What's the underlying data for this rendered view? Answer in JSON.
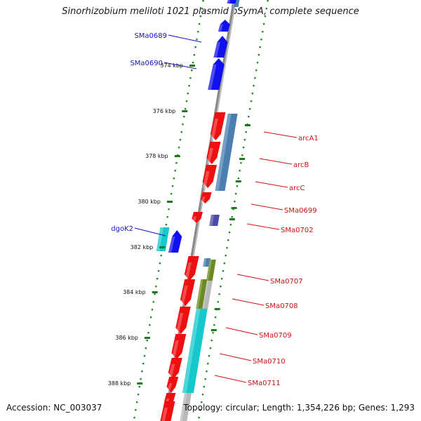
{
  "title": "Sinorhizobium meliloti 1021 plasmid pSymA, complete sequence",
  "accession_label": "Accession: NC_003037",
  "topology_label": "Topology: circular; Length: 1,354,226 bp; Genes: 1,293",
  "colors": {
    "forward_gene": "#1010ee",
    "reverse_gene": "#ee1010",
    "backbone": "#8a8a8a",
    "tick": "#1f7a1f",
    "dotted_track": "#2a8a2a",
    "cds_blue": "#4a7fb0",
    "cds_cyan": "#14c8cc",
    "cds_olive": "#6b8a22",
    "cds_grey": "#b8b8b8",
    "cds_purple": "#4a4aa8",
    "fwd_label": "#1414bb",
    "rev_label": "#cc1111"
  },
  "scale_labels": [
    "374 kbp",
    "376 kbp",
    "378 kbp",
    "380 kbp",
    "382 kbp",
    "384 kbp",
    "386 kbp",
    "388 kbp"
  ],
  "forward_gene_labels": [
    "SMa0689",
    "SMa0690",
    "dgoK2"
  ],
  "reverse_gene_labels": [
    "arcA1",
    "arcB",
    "arcC",
    "SMa0699",
    "SMa0702",
    "SMa0707",
    "SMa0708",
    "SMa0709",
    "SMa0710",
    "SMa0711"
  ]
}
